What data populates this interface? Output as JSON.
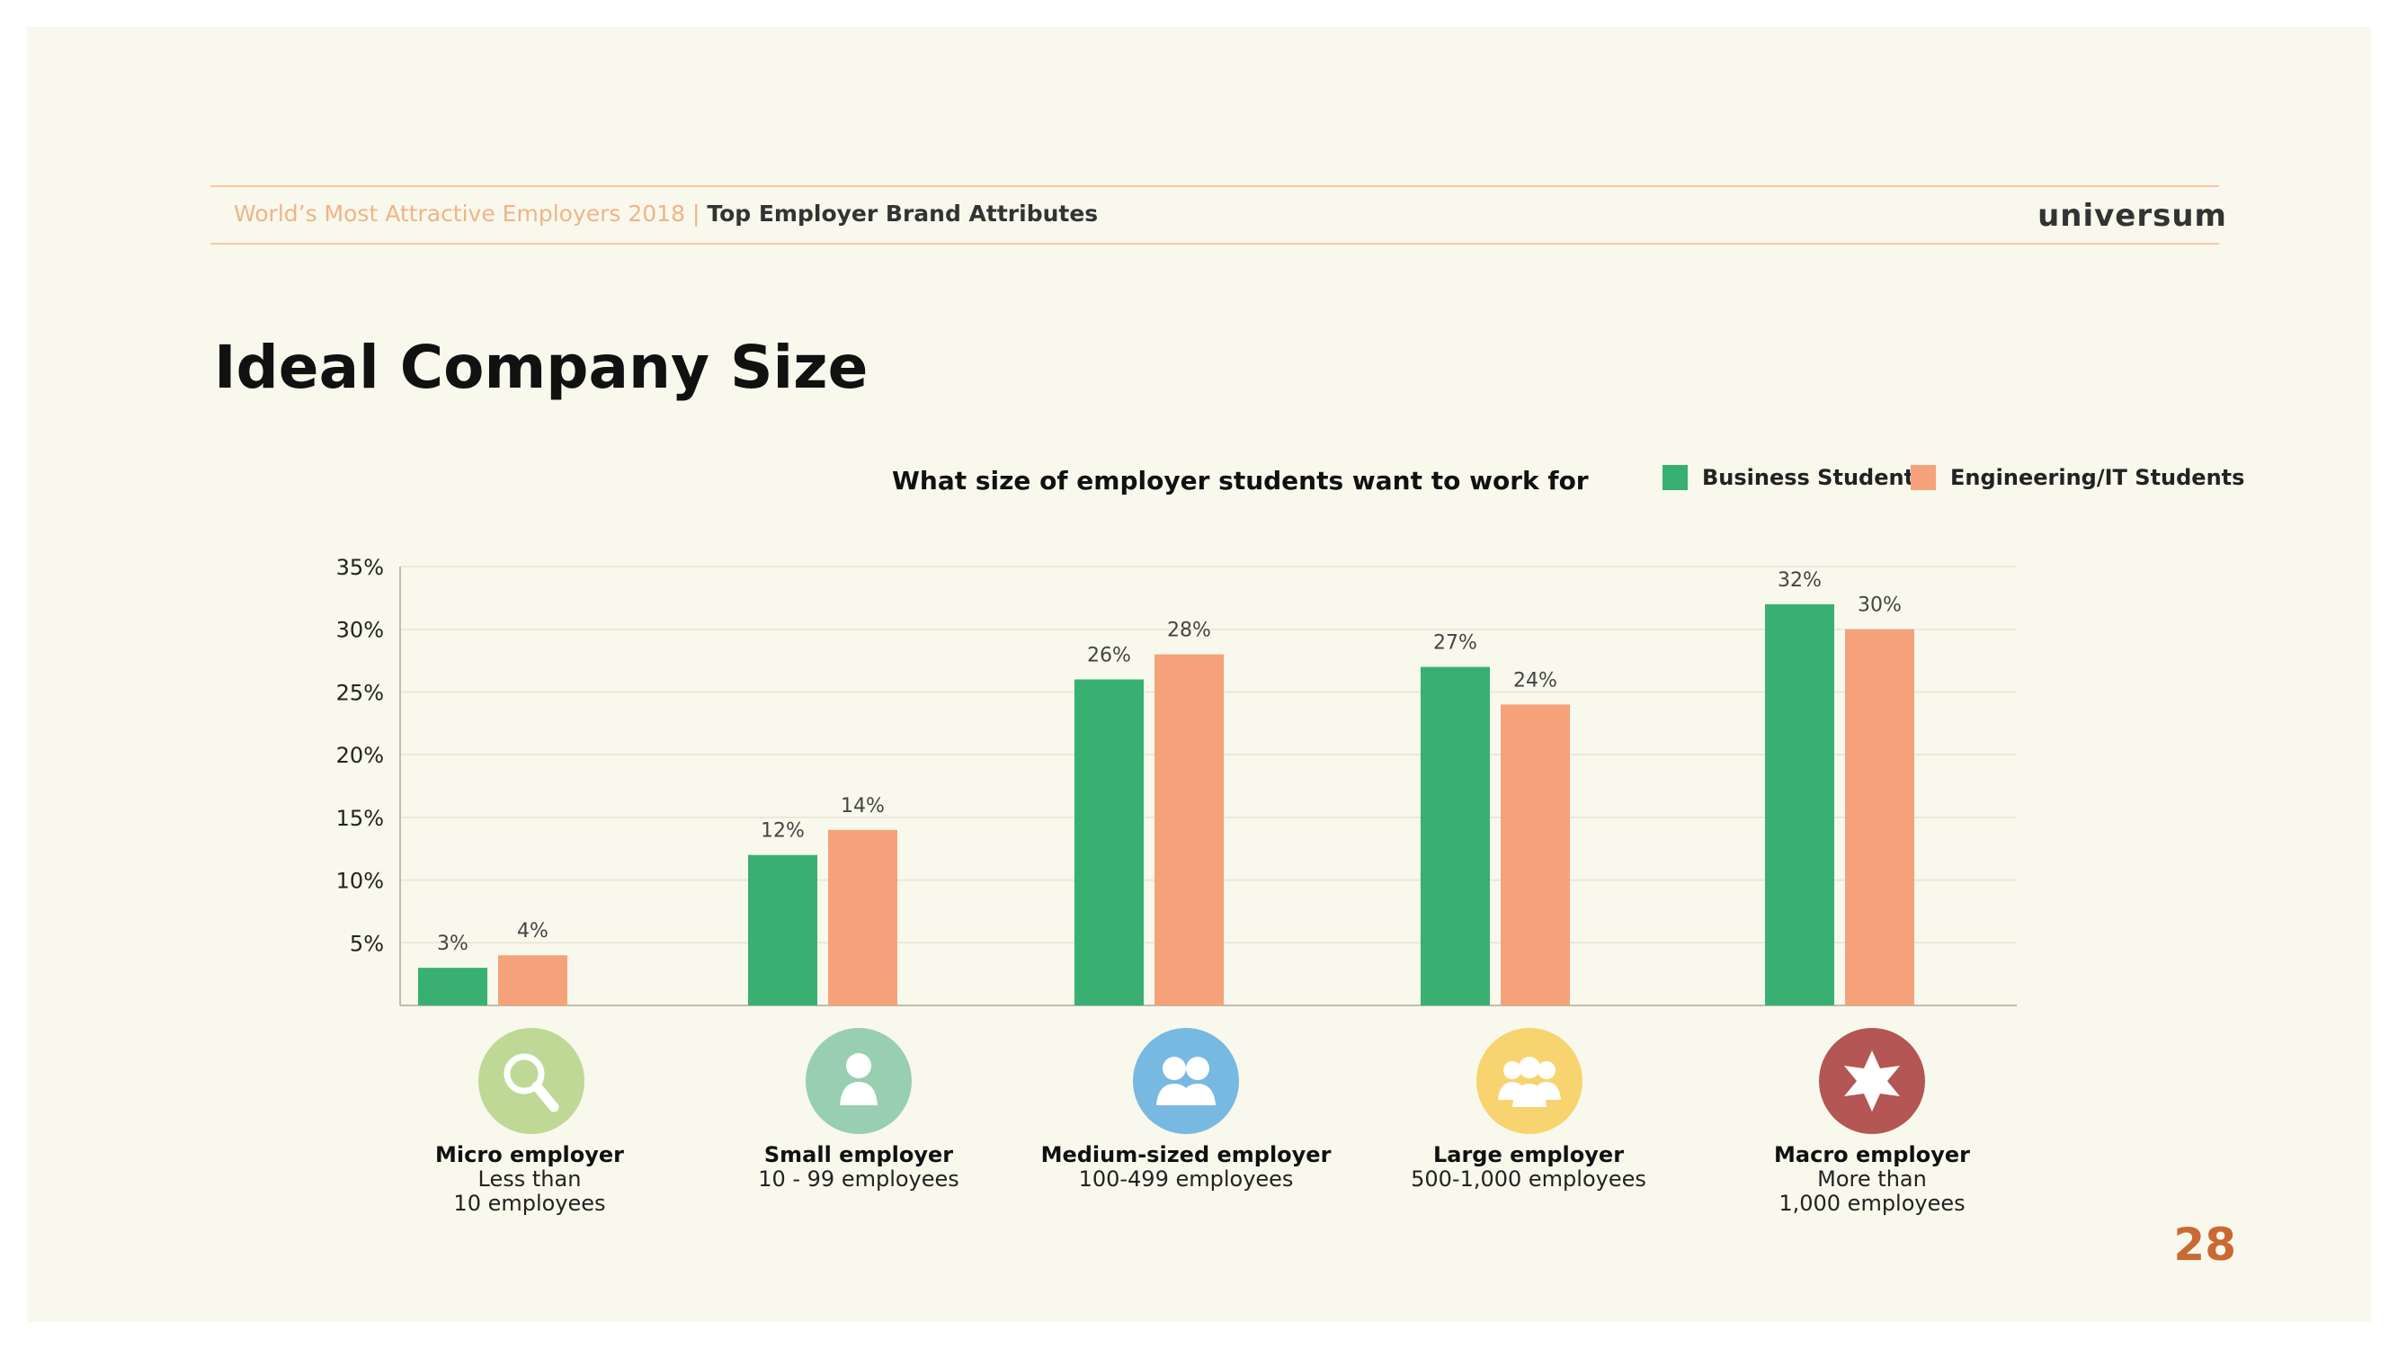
{
  "header": {
    "report_title": "World’s Most Attractive Employers 2018",
    "separator": "|",
    "section_title": "Top Employer Brand Attributes",
    "brand": "universum"
  },
  "page": {
    "title": "Ideal Company Size",
    "number": "28"
  },
  "colors": {
    "business": "#37b071",
    "engineering": "#f5a27b",
    "background": "#f9f8ec",
    "page_number": "#c96a33"
  },
  "categories": [
    {
      "name": "Micro employer",
      "desc": "Less than\n10 employees",
      "icon": "magnifier-icon",
      "color": "#bfd896"
    },
    {
      "name": "Small employer",
      "desc": "10 - 99 employees",
      "icon": "person-icon",
      "color": "#98cfb0"
    },
    {
      "name": "Medium-sized employer",
      "desc": "100-499 employees",
      "icon": "two-people-icon",
      "color": "#78b9e1"
    },
    {
      "name": "Large employer",
      "desc": "500-1,000 employees",
      "icon": "group-icon",
      "color": "#f7d46f"
    },
    {
      "name": "Macro employer",
      "desc": "More than\n1,000 employees",
      "icon": "star-icon",
      "color": "#b35654"
    }
  ],
  "chart_data": {
    "type": "bar",
    "title": "What size of employer students want to work for",
    "categories": [
      "Micro employer",
      "Small employer",
      "Medium-sized employer",
      "Large employer",
      "Macro employer"
    ],
    "series": [
      {
        "name": "Business Students",
        "values": [
          3,
          12,
          26,
          27,
          32
        ],
        "labels": [
          "3%",
          "12%",
          "26%",
          "27%",
          "32%"
        ]
      },
      {
        "name": "Engineering/IT Students",
        "values": [
          4,
          14,
          28,
          24,
          30
        ],
        "labels": [
          "4%",
          "14%",
          "28%",
          "24%",
          "30%"
        ]
      }
    ],
    "ylim": [
      0,
      35
    ],
    "yticks": [
      5,
      10,
      15,
      20,
      25,
      30,
      35
    ],
    "ytick_labels": [
      "5%",
      "10%",
      "15%",
      "20%",
      "25%",
      "30%",
      "35%"
    ],
    "grid": true,
    "legend": "top-right",
    "xlabel": "",
    "ylabel": ""
  }
}
